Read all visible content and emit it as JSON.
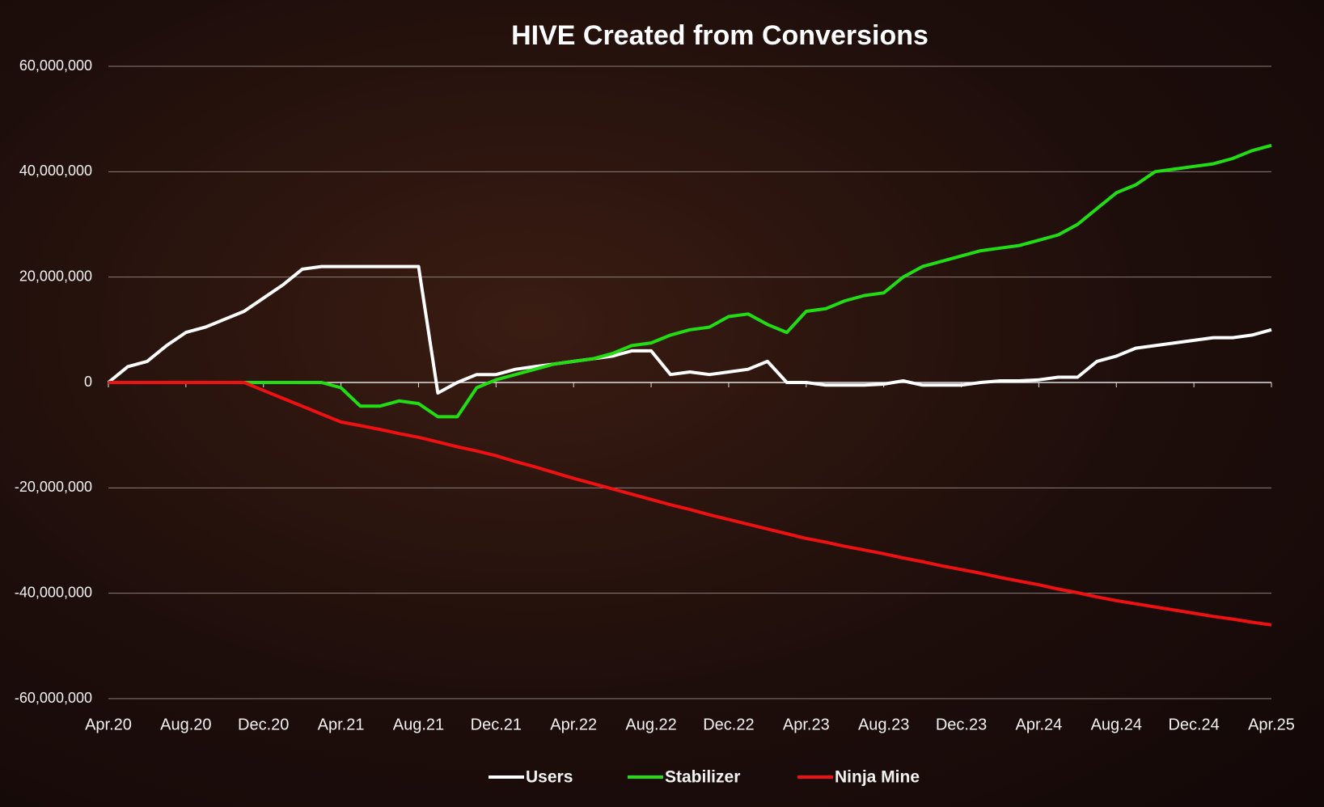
{
  "chart_data": {
    "type": "line",
    "title": "HIVE Created from Conversions",
    "categories": [
      "Apr.20",
      null,
      null,
      null,
      "Aug.20",
      null,
      null,
      null,
      "Dec.20",
      null,
      null,
      null,
      "Apr.21",
      null,
      null,
      null,
      "Aug.21",
      null,
      null,
      null,
      "Dec.21",
      null,
      null,
      null,
      "Apr.22",
      null,
      null,
      null,
      "Aug.22",
      null,
      null,
      null,
      "Dec.22",
      null,
      null,
      null,
      "Apr.23",
      null,
      null,
      null,
      "Aug.23",
      null,
      null,
      null,
      "Dec.23",
      null,
      null,
      null,
      "Apr.24",
      null,
      null,
      null,
      "Aug.24",
      null,
      null,
      null,
      "Dec.24",
      null,
      null,
      null,
      "Apr.25"
    ],
    "series": [
      {
        "name": "Users",
        "color": "#ffffff",
        "values": [
          0,
          3000000.0,
          4000000.0,
          7000000.0,
          9500000.0,
          10500000.0,
          12000000.0,
          13500000.0,
          16000000.0,
          18500000.0,
          21500000.0,
          22000000.0,
          22000000.0,
          22000000.0,
          22000000.0,
          22000000.0,
          22000000.0,
          -2000000.0,
          0,
          1500000.0,
          1500000.0,
          2500000.0,
          3000000.0,
          3500000.0,
          4000000.0,
          4500000.0,
          5000000.0,
          6000000.0,
          6000000.0,
          1500000.0,
          2000000.0,
          1500000.0,
          2000000.0,
          2500000.0,
          4000000.0,
          0,
          0,
          -500000.0,
          -500000.0,
          -500000.0,
          -300000.0,
          300000.0,
          -500000.0,
          -500000.0,
          -500000.0,
          0,
          300000.0,
          300000.0,
          500000.0,
          1000000.0,
          1000000.0,
          4000000.0,
          5000000.0,
          6500000.0,
          7000000.0,
          7500000.0,
          8000000.0,
          8500000.0,
          8500000.0,
          9000000.0,
          10000000.0
        ]
      },
      {
        "name": "Stabilizer",
        "color": "#22dd11",
        "values": [
          0,
          0,
          0,
          0,
          0,
          0,
          0,
          0,
          0,
          0,
          0,
          0,
          -1000000.0,
          -4500000.0,
          -4500000.0,
          -3500000.0,
          -4000000.0,
          -6500000.0,
          -6500000.0,
          -1000000.0,
          500000.0,
          1500000.0,
          2500000.0,
          3500000.0,
          4000000.0,
          4500000.0,
          5500000.0,
          7000000.0,
          7500000.0,
          9000000.0,
          10000000.0,
          10500000.0,
          12500000.0,
          13000000.0,
          11000000.0,
          9500000.0,
          13500000.0,
          14000000.0,
          15500000.0,
          16500000.0,
          17000000.0,
          20000000.0,
          22000000.0,
          23000000.0,
          24000000.0,
          25000000.0,
          25500000.0,
          26000000.0,
          27000000.0,
          28000000.0,
          30000000.0,
          33000000.0,
          36000000.0,
          37500000.0,
          40000000.0,
          40500000.0,
          41000000.0,
          41500000.0,
          42500000.0,
          44000000.0,
          45000000.0
        ]
      },
      {
        "name": "Ninja Mine",
        "color": "#ee1111",
        "values": [
          0,
          0,
          0,
          0,
          0,
          0,
          0,
          0,
          -1500000.0,
          -3000000.0,
          -4500000.0,
          -6000000.0,
          -7500000.0,
          -8200000.0,
          -8900000.0,
          -9700000.0,
          -10400000.0,
          -11300000.0,
          -12200000.0,
          -13000000.0,
          -13900000.0,
          -15000000.0,
          -16000000.0,
          -17100000.0,
          -18200000.0,
          -19200000.0,
          -20200000.0,
          -21200000.0,
          -22200000.0,
          -23200000.0,
          -24100000.0,
          -25100000.0,
          -26000000.0,
          -26900000.0,
          -27800000.0,
          -28700000.0,
          -29600000.0,
          -30300000.0,
          -31100000.0,
          -31800000.0,
          -32500000.0,
          -33300000.0,
          -34000000.0,
          -34800000.0,
          -35500000.0,
          -36200000.0,
          -37000000.0,
          -37700000.0,
          -38400000.0,
          -39200000.0,
          -39900000.0,
          -40700000.0,
          -41400000.0,
          -42000000.0,
          -42600000.0,
          -43200000.0,
          -43800000.0,
          -44400000.0,
          -44900000.0,
          -45500000.0,
          -46000000.0
        ]
      }
    ],
    "ylim": [
      -60000000.0,
      60000000.0
    ],
    "yticks": [
      {
        "value": -60000000.0,
        "label": "-60,000,000"
      },
      {
        "value": -40000000.0,
        "label": "-40,000,000"
      },
      {
        "value": -20000000.0,
        "label": "-20,000,000"
      },
      0,
      {
        "value": 20000000.0,
        "label": "20,000,000"
      },
      {
        "value": 40000000.0,
        "label": "40,000,000"
      },
      {
        "value": 60000000.0,
        "label": "60,000,000"
      }
    ],
    "grid": true,
    "legend": "bottom"
  }
}
